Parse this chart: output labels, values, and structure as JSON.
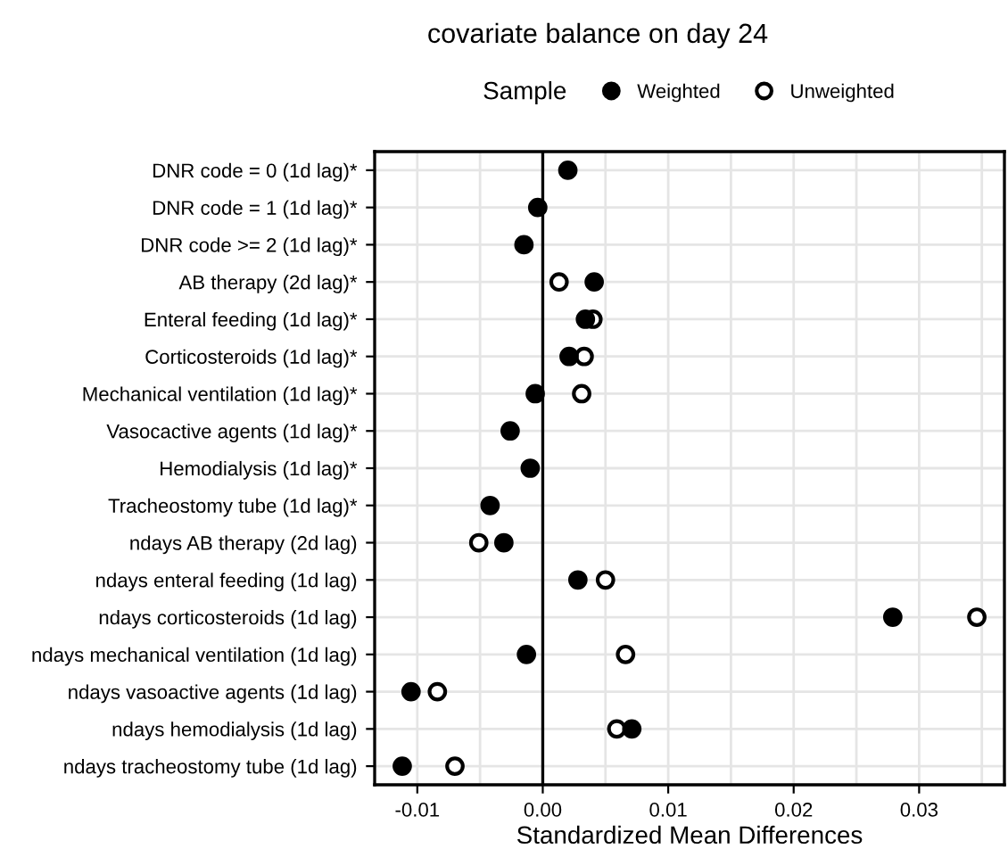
{
  "chart_data": {
    "type": "scatter",
    "orientation": "horizontal",
    "title": "covariate balance on day 24",
    "xlabel": "Standardized Mean Differences",
    "legend_title": "Sample",
    "legend": "top",
    "grid": true,
    "marker": "circle",
    "categories": [
      "DNR code = 0 (1d lag)*",
      "DNR code = 1 (1d lag)*",
      "DNR code >= 2 (1d lag)*",
      "AB therapy (2d lag)*",
      "Enteral feeding (1d lag)*",
      "Corticosteroids (1d lag)*",
      "Mechanical ventilation (1d lag)*",
      "Vasocactive agents (1d lag)*",
      "Hemodialysis (1d lag)*",
      "Tracheostomy tube (1d lag)*",
      "ndays AB therapy (2d lag)",
      "ndays enteral feeding (1d lag)",
      "ndays corticosteroids (1d lag)",
      "ndays mechanical ventilation (1d lag)",
      "ndays vasoactive agents (1d lag)",
      "ndays hemodialysis (1d lag)",
      "ndays tracheostomy tube (1d lag)"
    ],
    "series": [
      {
        "name": "Weighted",
        "color": "#000000",
        "values": [
          0.002,
          -0.0004,
          -0.0015,
          0.0041,
          0.0034,
          0.0021,
          -0.0006,
          -0.0026,
          -0.001,
          -0.0042,
          -0.0031,
          0.0028,
          0.0279,
          -0.0013,
          -0.0105,
          0.0071,
          -0.0112
        ]
      },
      {
        "name": "Unweighted",
        "color": "#ffffff",
        "values": [
          null,
          null,
          null,
          0.0013,
          0.004,
          0.0033,
          0.0031,
          null,
          null,
          null,
          -0.0051,
          0.005,
          0.0346,
          0.0066,
          -0.0084,
          0.0059,
          -0.007
        ]
      }
    ],
    "xlim": [
      -0.0134,
      0.0368
    ],
    "xticks": [
      {
        "value": -0.01,
        "label": "-0.01"
      },
      {
        "value": -0.005,
        "label": null
      },
      {
        "value": 0,
        "label": "0.00"
      },
      {
        "value": 0.005,
        "label": null
      },
      {
        "value": 0.01,
        "label": "0.01"
      },
      {
        "value": 0.015,
        "label": null
      },
      {
        "value": 0.02,
        "label": "0.02"
      },
      {
        "value": 0.025,
        "label": null
      },
      {
        "value": 0.03,
        "label": "0.03"
      },
      {
        "value": 0.035,
        "label": null
      }
    ],
    "ref_lines": [
      {
        "axis": "x",
        "value": 0,
        "color": "#000000"
      }
    ]
  }
}
